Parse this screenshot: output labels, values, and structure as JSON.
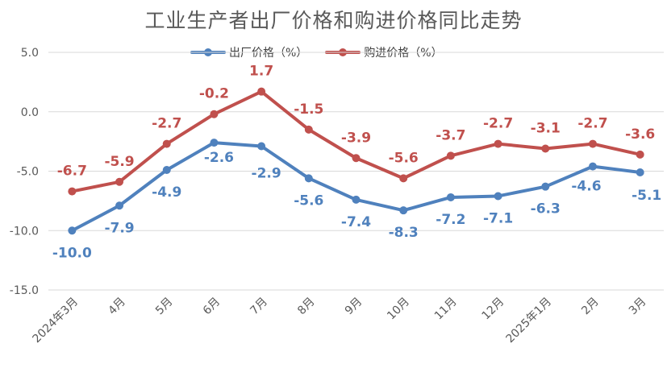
{
  "chart_data": {
    "type": "line",
    "title": "工业生产者出厂价格和购进价格同比走势",
    "categories": [
      "2024年3月",
      "4月",
      "5月",
      "6月",
      "7月",
      "8月",
      "9月",
      "10月",
      "11月",
      "12月",
      "2025年1月",
      "2月",
      "3月"
    ],
    "series": [
      {
        "name": "出厂价格（%）",
        "color": "#4F81BD",
        "values": [
          -10.0,
          -7.9,
          -4.9,
          -2.6,
          -2.9,
          -5.6,
          -7.4,
          -8.3,
          -7.2,
          -7.1,
          -6.3,
          -4.6,
          -5.1
        ],
        "labels": [
          "-10.0",
          "-7.9",
          "-4.9",
          "-2.6",
          "-2.9",
          "-5.6",
          "-7.4",
          "-8.3",
          "-7.2",
          "-7.1",
          "-6.3",
          "-4.6",
          "-5.1"
        ]
      },
      {
        "name": "购进价格（%）",
        "color": "#C0504D",
        "values": [
          -6.7,
          -5.9,
          -2.7,
          -0.2,
          1.7,
          -1.5,
          -3.9,
          -5.6,
          -3.7,
          -2.7,
          -3.1,
          -2.7,
          -3.6
        ],
        "labels": [
          "-6.7",
          "-5.9",
          "-2.7",
          "-0.2",
          "1.7",
          "-1.5",
          "-3.9",
          "-5.6",
          "-3.7",
          "-2.7",
          "-3.1",
          "-2.7",
          "-3.6"
        ]
      }
    ],
    "ylim": [
      -15,
      5
    ],
    "yticks": [
      "5.0",
      "0.0",
      "-5.0",
      "-10.0",
      "-15.0"
    ],
    "grid": true,
    "legend": "top-center"
  }
}
